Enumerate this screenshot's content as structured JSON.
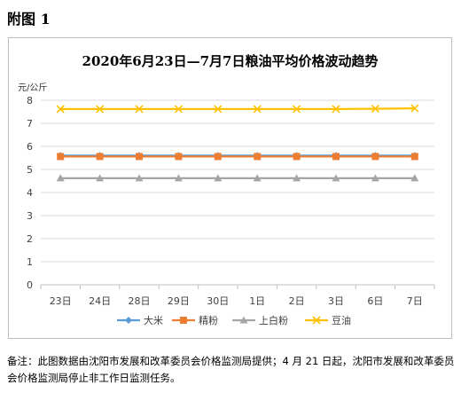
{
  "heading": "附图 1",
  "note": "备注：此图数据由沈阳市发展和改革委员会价格监测局提供；4 月 21 日起，沈阳市发展和改革委员会价格监测局停止非工作日监测任务。",
  "chart_data": {
    "type": "line",
    "title": "2020年6月23日—7月7日粮油平均价格波动趋势",
    "ylabel": "元/公斤",
    "xlabel": "",
    "ylim": [
      0,
      8
    ],
    "yticks": [
      0,
      1,
      2,
      3,
      4,
      5,
      6,
      7,
      8
    ],
    "grid": true,
    "legend": "bottom",
    "categories": [
      "23日",
      "24日",
      "28日",
      "29日",
      "30日",
      "1日",
      "2日",
      "3日",
      "6日",
      "7日"
    ],
    "series": [
      {
        "name": "大米",
        "color": "#5b9bd5",
        "marker": "diamond",
        "values": [
          5.6,
          5.6,
          5.6,
          5.6,
          5.6,
          5.6,
          5.6,
          5.6,
          5.6,
          5.6
        ]
      },
      {
        "name": "精粉",
        "color": "#ed7d31",
        "marker": "square",
        "values": [
          5.56,
          5.56,
          5.56,
          5.56,
          5.56,
          5.56,
          5.56,
          5.56,
          5.56,
          5.56
        ]
      },
      {
        "name": "上白粉",
        "color": "#a5a5a5",
        "marker": "triangle",
        "values": [
          4.62,
          4.62,
          4.62,
          4.62,
          4.62,
          4.62,
          4.62,
          4.62,
          4.62,
          4.62
        ]
      },
      {
        "name": "豆油",
        "color": "#ffc000",
        "marker": "x",
        "values": [
          7.62,
          7.62,
          7.62,
          7.62,
          7.62,
          7.62,
          7.62,
          7.62,
          7.63,
          7.65
        ]
      }
    ]
  }
}
